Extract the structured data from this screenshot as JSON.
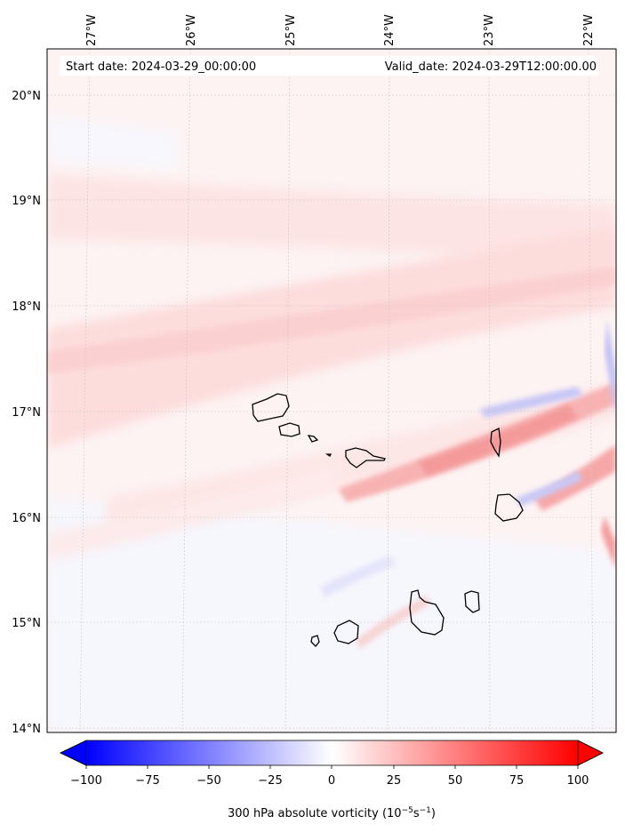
{
  "map": {
    "start_date": "Start date: 2024-03-29_00:00:00",
    "valid_date": "Valid_date: 2024-03-29T12:00:00.00",
    "lon_labels": [
      "27°W",
      "26°W",
      "25°W",
      "24°W",
      "23°W",
      "22°W"
    ],
    "lat_labels": [
      "20°N",
      "19°N",
      "18°N",
      "17°N",
      "16°N",
      "15°N",
      "14°N"
    ],
    "islands": [
      "Santo Antão",
      "São Vicente",
      "Santa Luzia",
      "Branco",
      "São Nicolau",
      "Sal",
      "Boa Vista",
      "Maio",
      "Santiago",
      "Fogo",
      "Brava"
    ]
  },
  "colorbar": {
    "label_prefix": "300 hPa absolute vorticity (10",
    "label_exp1": "−5",
    "label_mid": "s",
    "label_exp2": "−1",
    "label_suffix": ")",
    "ticks": [
      "−100",
      "−75",
      "−50",
      "−25",
      "0",
      "25",
      "50",
      "75",
      "100"
    ],
    "min_color": "#0000ff",
    "mid_color": "#ffffff",
    "max_color": "#ff0000"
  }
}
